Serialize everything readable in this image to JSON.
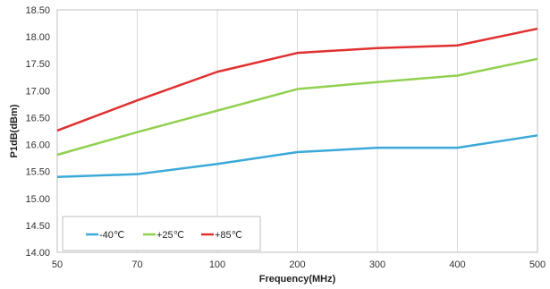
{
  "chart_data": {
    "type": "line",
    "title": "",
    "xlabel": "Frequency(MHz)",
    "ylabel": "P1dB(dBm)",
    "categories": [
      "50",
      "70",
      "100",
      "200",
      "300",
      "400",
      "500"
    ],
    "ylim": [
      14.0,
      18.5
    ],
    "yticks": [
      "14.00",
      "14.50",
      "15.00",
      "15.50",
      "16.00",
      "16.50",
      "17.00",
      "17.50",
      "18.00",
      "18.50"
    ],
    "grid": "vertical",
    "legend_position": "bottom-left",
    "series": [
      {
        "name": "-40℃",
        "color": "#3aa9d8",
        "values": [
          15.4,
          15.45,
          15.64,
          15.86,
          15.94,
          15.94,
          16.17
        ]
      },
      {
        "name": "+25℃",
        "color": "#92d050",
        "values": [
          15.81,
          16.23,
          16.63,
          17.03,
          17.16,
          17.28,
          17.59
        ]
      },
      {
        "name": "+85℃",
        "color": "#e03030",
        "values": [
          16.26,
          16.82,
          17.35,
          17.7,
          17.79,
          17.84,
          18.15
        ]
      }
    ]
  }
}
